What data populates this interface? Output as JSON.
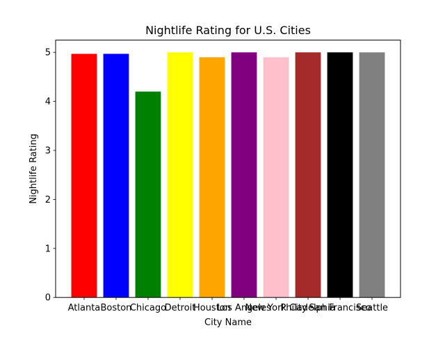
{
  "chart_data": {
    "type": "bar",
    "title": "Nightlife Rating for U.S. Cities",
    "xlabel": "City Name",
    "ylabel": "Nightlife Rating",
    "categories": [
      "Atlanta",
      "Boston",
      "Chicago",
      "Detroit",
      "Houston",
      "Los Angeles",
      "New York City",
      "Philadelphia",
      "San Francisco",
      "Seattle"
    ],
    "values": [
      4.97,
      4.97,
      4.2,
      5.0,
      4.9,
      5.0,
      4.9,
      5.0,
      5.0,
      5.0
    ],
    "colors": [
      "#ff0000",
      "#0000ff",
      "#008000",
      "#ffff00",
      "#ffa500",
      "#800080",
      "#ffc0cb",
      "#a52a2a",
      "#000000",
      "#808080"
    ],
    "ylim": [
      0,
      5.25
    ],
    "yticks": [
      0,
      1,
      2,
      3,
      4,
      5
    ],
    "grid": false,
    "legend": null
  }
}
